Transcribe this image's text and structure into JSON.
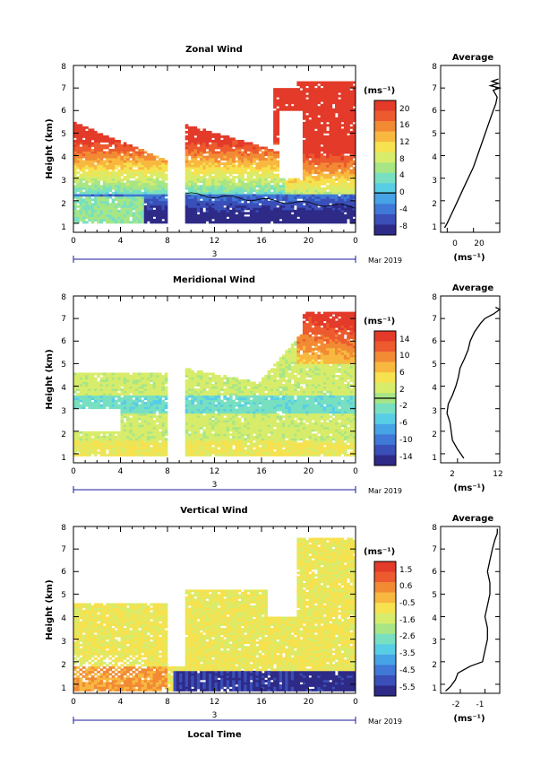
{
  "page": {
    "x_axis_label": "Local Time",
    "date_label": "Mar 2019",
    "day_label": "3"
  },
  "chart_data": [
    {
      "type": "heatmap",
      "title": "Zonal Wind",
      "ylabel": "Height (km)",
      "xlabel": "",
      "x_ticks": [
        "0",
        "4",
        "8",
        "12",
        "16",
        "20",
        "0"
      ],
      "y_ticks": [
        "1",
        "2",
        "3",
        "4",
        "5",
        "6",
        "7",
        "8"
      ],
      "xlim": [
        0,
        24
      ],
      "ylim": [
        0.6,
        8
      ],
      "colorbar": {
        "unit": "(ms⁻¹)",
        "ticks": [
          "20",
          "16",
          "12",
          "8",
          "4",
          "0",
          "-4",
          "-8"
        ],
        "range": [
          -10,
          22
        ],
        "zero_line": 0
      },
      "average_profile": {
        "title": "Average",
        "xlabel": "(ms⁻¹)",
        "x_ticks": [
          "0",
          "20"
        ],
        "xlim": [
          -5,
          40
        ],
        "heights": [
          0.8,
          1.0,
          1.5,
          2.0,
          2.5,
          3.0,
          3.5,
          4.0,
          4.5,
          5.0,
          5.5,
          6.0,
          6.3,
          6.6,
          6.9,
          7.0,
          7.1,
          7.2,
          7.3,
          7.4
        ],
        "values": [
          -2,
          0,
          4,
          8,
          12,
          16,
          20,
          23,
          26,
          29,
          32,
          35,
          37,
          38,
          35,
          40,
          33,
          39,
          34,
          39
        ]
      }
    },
    {
      "type": "heatmap",
      "title": "Meridional Wind",
      "ylabel": "Height (km)",
      "xlabel": "",
      "x_ticks": [
        "0",
        "4",
        "8",
        "12",
        "16",
        "20",
        "0"
      ],
      "y_ticks": [
        "1",
        "2",
        "3",
        "4",
        "5",
        "6",
        "7",
        "8"
      ],
      "xlim": [
        0,
        24
      ],
      "ylim": [
        0.6,
        8
      ],
      "colorbar": {
        "unit": "(ms⁻¹)",
        "ticks": [
          "14",
          "10",
          "6",
          "2",
          "-2",
          "-6",
          "-10",
          "-14"
        ],
        "range": [
          -16,
          16
        ],
        "zero_line": 0
      },
      "average_profile": {
        "title": "Average",
        "xlabel": "(ms⁻¹)",
        "x_ticks": [
          "2",
          "12"
        ],
        "xlim": [
          -2,
          12
        ],
        "heights": [
          0.8,
          1.2,
          1.6,
          2.0,
          2.4,
          2.8,
          3.2,
          3.6,
          4.0,
          4.4,
          4.8,
          5.2,
          5.6,
          6.0,
          6.4,
          6.8,
          7.0,
          7.2,
          7.4,
          7.5
        ],
        "values": [
          3.5,
          2.0,
          0.8,
          0.5,
          0.2,
          -0.5,
          -0.2,
          0.8,
          1.6,
          2.2,
          2.6,
          3.6,
          4.5,
          5.0,
          6.0,
          7.5,
          8.5,
          10.5,
          12.0,
          11.0
        ]
      }
    },
    {
      "type": "heatmap",
      "title": "Vertical Wind",
      "ylabel": "Height (km)",
      "xlabel": "Local Time",
      "x_ticks": [
        "0",
        "4",
        "8",
        "12",
        "16",
        "20",
        "0"
      ],
      "y_ticks": [
        "1",
        "2",
        "3",
        "4",
        "5",
        "6",
        "7",
        "8"
      ],
      "xlim": [
        0,
        24
      ],
      "ylim": [
        0.6,
        8
      ],
      "colorbar": {
        "unit": "(ms⁻¹)",
        "ticks": [
          "1.5",
          "0.6",
          "-0.5",
          "-1.6",
          "-2.6",
          "-3.5",
          "-4.5",
          "-5.5"
        ],
        "range": [
          -6.0,
          2.0
        ]
      },
      "average_profile": {
        "title": "Average",
        "xlabel": "(ms⁻¹)",
        "x_ticks": [
          "-2",
          "-1"
        ],
        "xlim": [
          -2.8,
          -0.4
        ],
        "heights": [
          0.7,
          0.9,
          1.2,
          1.5,
          1.8,
          2.0,
          2.5,
          3.0,
          3.5,
          4.0,
          4.5,
          5.0,
          5.5,
          6.0,
          6.5,
          7.0,
          7.4,
          7.7,
          7.9
        ],
        "values": [
          -2.6,
          -2.4,
          -2.2,
          -2.1,
          -1.6,
          -1.1,
          -1.0,
          -0.9,
          -0.9,
          -1.0,
          -0.9,
          -0.8,
          -0.8,
          -0.9,
          -0.8,
          -0.7,
          -0.6,
          -0.5,
          -0.5
        ]
      }
    }
  ]
}
